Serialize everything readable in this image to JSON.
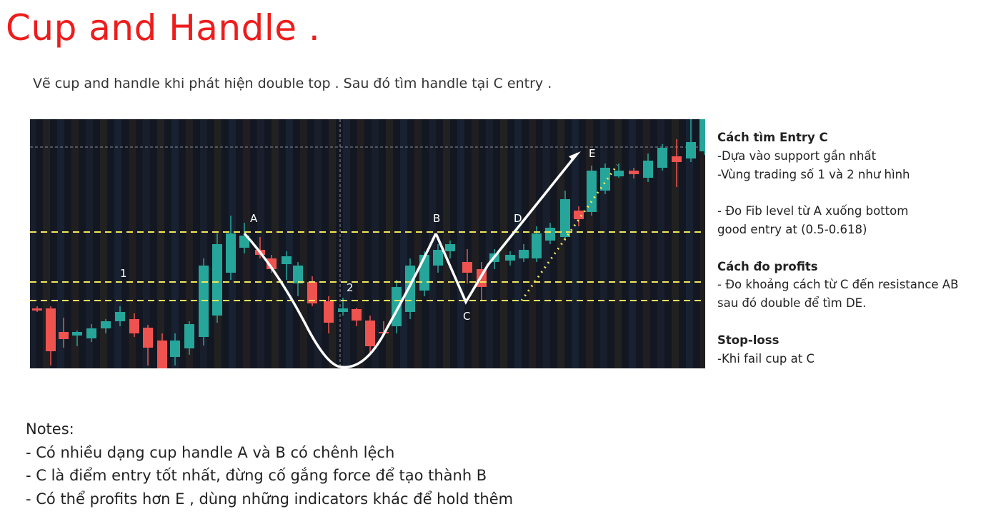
{
  "title": "Cup and Handle .",
  "subtitle": "Vẽ cup and handle khi phát hiện double top . Sau đó tìm handle tại C entry .",
  "chart": {
    "colors": {
      "background": "#131722",
      "up": "#26a69a",
      "down": "#ef5350",
      "levels": "#f2e85b",
      "arrows": "#ffffff"
    },
    "point_labels": {
      "A": "A",
      "B": "B",
      "C": "C",
      "D": "D",
      "E": "E",
      "zone1": "1",
      "zone2": "2"
    }
  },
  "sidebar": {
    "sections": [
      {
        "heading": "Cách tìm Entry C",
        "lines": [
          "-Dựa vào support gần nhất",
          "-Vùng trading số 1 và 2 như hình",
          "",
          "- Đo Fib level từ A xuống bottom",
          "good entry at (0.5-0.618)"
        ]
      },
      {
        "heading": "Cách đo profits",
        "lines": [
          "- Đo khoảng cách từ C đến resistance AB",
          "sau đó double để tìm DE."
        ]
      },
      {
        "heading": "Stop-loss",
        "lines": [
          "-Khi fail cup at C"
        ]
      }
    ]
  },
  "notes": {
    "heading": "Notes:",
    "items": [
      "- Có nhiều dạng cup handle A và B có chênh lệch",
      "- C là điểm entry tốt nhất, đừng cố gắng force để tạo thành B",
      "- Có thể profits hơn E , dùng những indicators khác để hold thêm"
    ]
  }
}
